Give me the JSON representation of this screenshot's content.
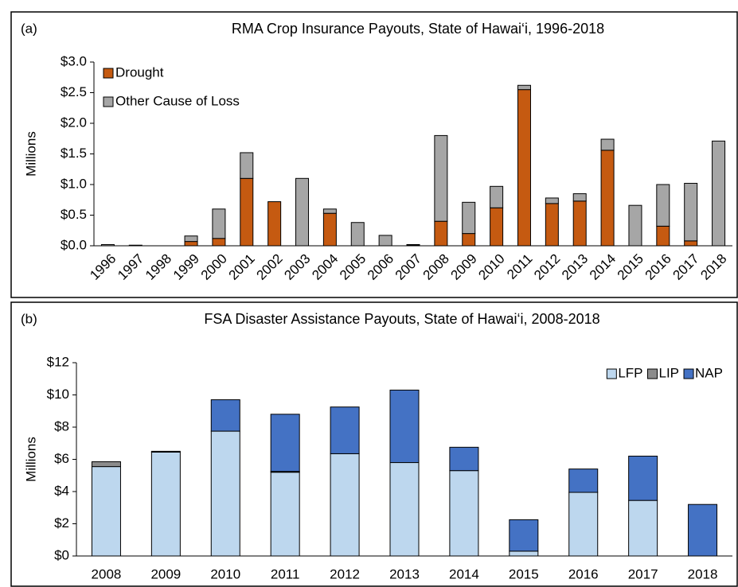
{
  "chart_data": [
    {
      "type": "bar",
      "stacked": true,
      "panel_label": "(a)",
      "title": "RMA Crop Insurance Payouts, State of Hawai‘i, 1996-2018",
      "y_label": "Millions",
      "categories": [
        "1996",
        "1997",
        "1998",
        "1999",
        "2000",
        "2001",
        "2002",
        "2003",
        "2004",
        "2005",
        "2006",
        "2007",
        "2008",
        "2009",
        "2010",
        "2011",
        "2012",
        "2013",
        "2014",
        "2015",
        "2016",
        "2017",
        "2018"
      ],
      "series": [
        {
          "name": "Drought",
          "color": "#c55a11",
          "values": [
            0,
            0,
            0,
            0.07,
            0.12,
            1.1,
            0.72,
            0,
            0.53,
            0,
            0,
            0.01,
            0.4,
            0.2,
            0.62,
            2.55,
            0.69,
            0.73,
            1.56,
            0,
            0.32,
            0.08,
            0
          ]
        },
        {
          "name": "Other Cause of Loss",
          "color": "#a6a6a6",
          "values": [
            0.02,
            0.01,
            0,
            0.09,
            0.48,
            0.42,
            0,
            1.1,
            0.07,
            0.38,
            0.17,
            0.01,
            1.4,
            0.51,
            0.35,
            0.07,
            0.09,
            0.12,
            0.18,
            0.66,
            0.68,
            0.94,
            1.71
          ]
        }
      ],
      "ylim": [
        0,
        3
      ],
      "yticks": [
        {
          "value": 0,
          "label": "$0.0"
        },
        {
          "value": 0.5,
          "label": "$0.5"
        },
        {
          "value": 1,
          "label": "$1.0"
        },
        {
          "value": 1.5,
          "label": "$1.5"
        },
        {
          "value": 2,
          "label": "$2.0"
        },
        {
          "value": 2.5,
          "label": "$2.5"
        },
        {
          "value": 3,
          "label": "$3.0"
        }
      ],
      "legend": "upper left"
    },
    {
      "type": "bar",
      "stacked": true,
      "panel_label": "(b)",
      "title": "FSA Disaster Assistance Payouts, State of Hawai‘i, 2008-2018",
      "y_label": "Millions",
      "categories": [
        "2008",
        "2009",
        "2010",
        "2011",
        "2012",
        "2013",
        "2014",
        "2015",
        "2016",
        "2017",
        "2018"
      ],
      "series": [
        {
          "name": "LFP",
          "color": "#bdd7ee",
          "values": [
            5.55,
            6.45,
            7.75,
            5.2,
            6.35,
            5.8,
            5.3,
            0.3,
            3.95,
            3.45,
            0
          ]
        },
        {
          "name": "LIP",
          "color": "#8c8c8c",
          "values": [
            0.3,
            0.05,
            0,
            0.05,
            0,
            0,
            0,
            0,
            0,
            0,
            0
          ]
        },
        {
          "name": "NAP",
          "color": "#4472c4",
          "values": [
            0,
            0,
            1.95,
            3.55,
            2.9,
            4.5,
            1.45,
            1.95,
            1.45,
            2.75,
            3.2
          ]
        }
      ],
      "ylim": [
        0,
        12
      ],
      "yticks": [
        {
          "value": 0,
          "label": "$0"
        },
        {
          "value": 2,
          "label": "$2"
        },
        {
          "value": 4,
          "label": "$4"
        },
        {
          "value": 6,
          "label": "$6"
        },
        {
          "value": 8,
          "label": "$8"
        },
        {
          "value": 10,
          "label": "$10"
        },
        {
          "value": 12,
          "label": "$12"
        }
      ],
      "legend": "upper right"
    }
  ]
}
